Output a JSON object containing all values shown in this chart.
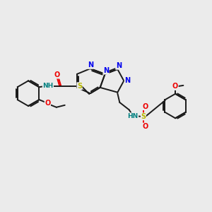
{
  "bg_color": "#ebebeb",
  "bond_color": "#1a1a1a",
  "bond_width": 1.4,
  "atom_colors": {
    "N": "#0000ee",
    "O": "#ee0000",
    "S": "#b8b800",
    "NH": "#008080",
    "C": "#1a1a1a"
  },
  "figsize": [
    3.0,
    3.0
  ],
  "dpi": 100,
  "xlim": [
    0,
    10
  ],
  "ylim": [
    0,
    10
  ]
}
